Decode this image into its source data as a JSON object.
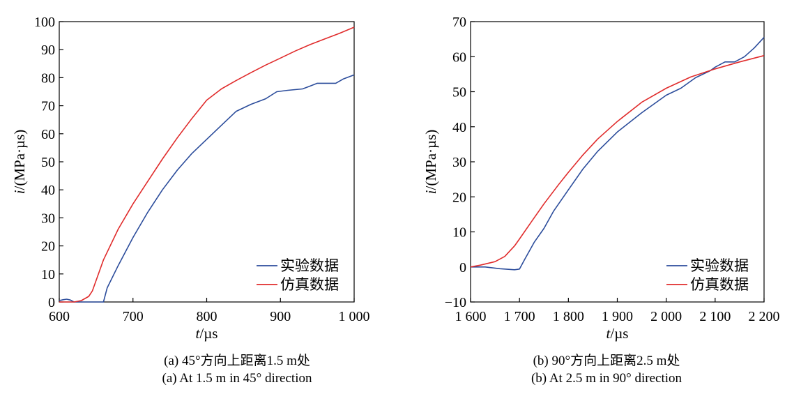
{
  "series_colors": {
    "experiment": "#2b4c9b",
    "simulation": "#e02b2b"
  },
  "chart_data": [
    {
      "type": "line",
      "xlabel_var": "t",
      "xlabel_unit": "/µs",
      "ylabel_var": "i",
      "ylabel_unit": "/(MPa·µs)",
      "xlim": [
        600,
        1000
      ],
      "ylim": [
        0,
        100
      ],
      "x_ticks": [
        600,
        700,
        800,
        900,
        1000
      ],
      "x_tick_labels": [
        "600",
        "700",
        "800",
        "900",
        "1 000"
      ],
      "y_ticks": [
        0,
        10,
        20,
        30,
        40,
        50,
        60,
        70,
        80,
        90,
        100
      ],
      "y_tick_labels": [
        "0",
        "10",
        "20",
        "30",
        "40",
        "50",
        "60",
        "70",
        "80",
        "90",
        "100"
      ],
      "legend_position": "bottom-right",
      "caption_cn": "(a) 45°方向上距离1.5 m处",
      "caption_en": "(a) At 1.5 m in 45° direction",
      "series": [
        {
          "name": "实验数据",
          "key": "experiment",
          "points": [
            [
              600,
              0.5
            ],
            [
              605,
              0.8
            ],
            [
              610,
              1
            ],
            [
              615,
              0.7
            ],
            [
              620,
              0
            ],
            [
              640,
              0
            ],
            [
              660,
              0
            ],
            [
              665,
              5
            ],
            [
              680,
              13
            ],
            [
              700,
              23
            ],
            [
              720,
              32
            ],
            [
              740,
              40
            ],
            [
              760,
              47
            ],
            [
              780,
              53
            ],
            [
              800,
              58
            ],
            [
              820,
              63
            ],
            [
              840,
              68
            ],
            [
              860,
              70.5
            ],
            [
              880,
              72.5
            ],
            [
              895,
              75
            ],
            [
              910,
              75.5
            ],
            [
              930,
              76
            ],
            [
              940,
              77
            ],
            [
              950,
              78
            ],
            [
              960,
              78
            ],
            [
              975,
              78
            ],
            [
              985,
              79.5
            ],
            [
              1000,
              81
            ]
          ]
        },
        {
          "name": "仿真数据",
          "key": "simulation",
          "points": [
            [
              600,
              0
            ],
            [
              610,
              0
            ],
            [
              620,
              0
            ],
            [
              630,
              0.5
            ],
            [
              640,
              2
            ],
            [
              645,
              4
            ],
            [
              660,
              15
            ],
            [
              680,
              26
            ],
            [
              700,
              35
            ],
            [
              720,
              43
            ],
            [
              740,
              51
            ],
            [
              760,
              58.5
            ],
            [
              780,
              65.5
            ],
            [
              800,
              72
            ],
            [
              820,
              76
            ],
            [
              840,
              79
            ],
            [
              860,
              81.8
            ],
            [
              880,
              84.5
            ],
            [
              900,
              87
            ],
            [
              920,
              89.5
            ],
            [
              940,
              91.8
            ],
            [
              960,
              93.8
            ],
            [
              980,
              95.8
            ],
            [
              1000,
              98
            ]
          ]
        }
      ]
    },
    {
      "type": "line",
      "xlabel_var": "t",
      "xlabel_unit": "/µs",
      "ylabel_var": "i",
      "ylabel_unit": "/(MPa·µs)",
      "xlim": [
        1600,
        2200
      ],
      "ylim": [
        -10,
        70
      ],
      "x_ticks": [
        1600,
        1700,
        1800,
        1900,
        2000,
        2100,
        2200
      ],
      "x_tick_labels": [
        "1 600",
        "1 700",
        "1 800",
        "1 900",
        "2 000",
        "2 100",
        "2 200"
      ],
      "y_ticks": [
        -10,
        0,
        10,
        20,
        30,
        40,
        50,
        60,
        70
      ],
      "y_tick_labels": [
        "−10",
        "0",
        "10",
        "20",
        "30",
        "40",
        "50",
        "60",
        "70"
      ],
      "legend_position": "bottom-right",
      "caption_cn": "(b) 90°方向上距离2.5 m处",
      "caption_en": "(b) At 2.5 m in 90° direction",
      "series": [
        {
          "name": "实验数据",
          "key": "experiment",
          "points": [
            [
              1600,
              0
            ],
            [
              1630,
              0
            ],
            [
              1660,
              -0.5
            ],
            [
              1690,
              -0.8
            ],
            [
              1700,
              -0.6
            ],
            [
              1710,
              2
            ],
            [
              1730,
              7
            ],
            [
              1750,
              11
            ],
            [
              1770,
              16
            ],
            [
              1800,
              22
            ],
            [
              1830,
              28
            ],
            [
              1860,
              33
            ],
            [
              1900,
              38.5
            ],
            [
              1950,
              44
            ],
            [
              2000,
              49
            ],
            [
              2030,
              51
            ],
            [
              2060,
              54
            ],
            [
              2090,
              56
            ],
            [
              2100,
              57
            ],
            [
              2120,
              58.5
            ],
            [
              2140,
              58.5
            ],
            [
              2160,
              60
            ],
            [
              2180,
              62.5
            ],
            [
              2200,
              65.5
            ]
          ]
        },
        {
          "name": "仿真数据",
          "key": "simulation",
          "points": [
            [
              1600,
              0
            ],
            [
              1620,
              0.5
            ],
            [
              1650,
              1.5
            ],
            [
              1670,
              3
            ],
            [
              1690,
              6
            ],
            [
              1700,
              8
            ],
            [
              1720,
              12
            ],
            [
              1750,
              18
            ],
            [
              1780,
              23.5
            ],
            [
              1800,
              27
            ],
            [
              1830,
              32
            ],
            [
              1860,
              36.5
            ],
            [
              1900,
              41.5
            ],
            [
              1950,
              47
            ],
            [
              2000,
              51
            ],
            [
              2050,
              54.2
            ],
            [
              2100,
              56.5
            ],
            [
              2150,
              58.5
            ],
            [
              2200,
              60.3
            ]
          ]
        }
      ]
    }
  ]
}
